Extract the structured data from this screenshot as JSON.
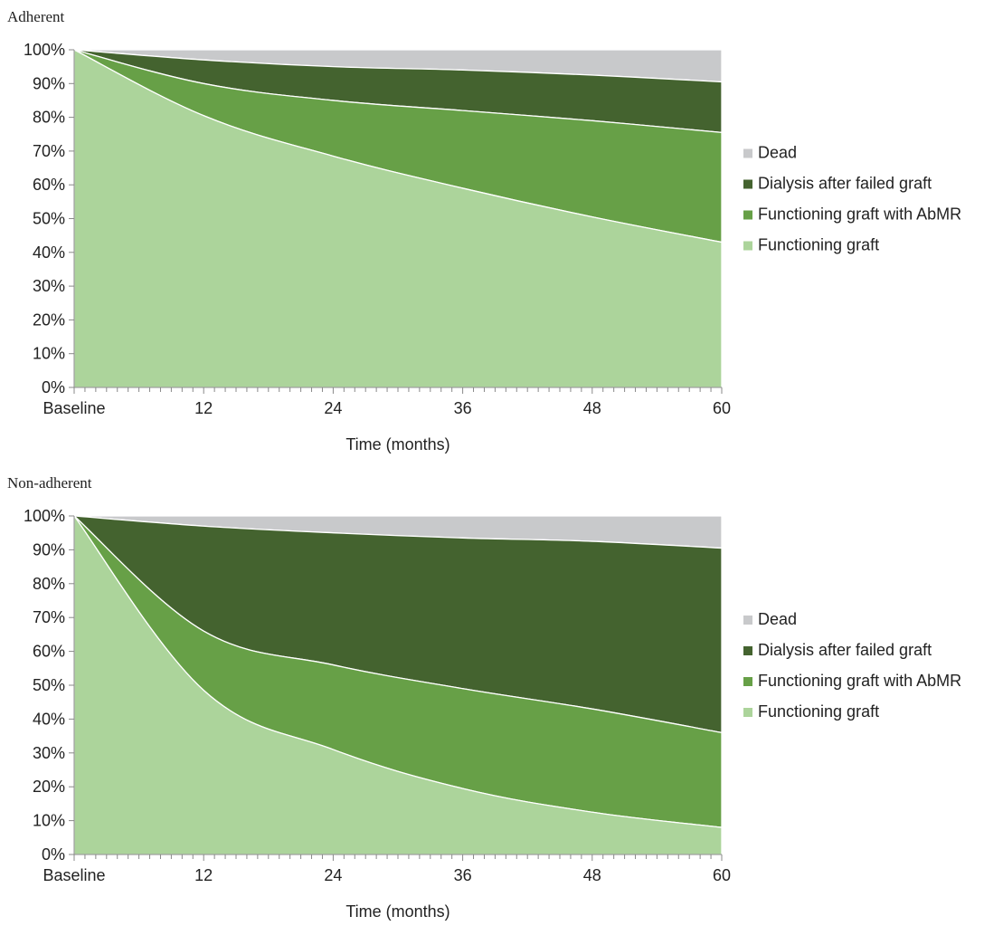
{
  "chart_data": [
    {
      "type": "area",
      "stacked": true,
      "title": "Adherent",
      "xlabel": "Time (months)",
      "ylabel": "",
      "x": [
        0,
        12,
        24,
        36,
        48,
        60
      ],
      "x_tick_labels": [
        "Baseline",
        "12",
        "24",
        "36",
        "48",
        "60"
      ],
      "y_tick_labels": [
        "0%",
        "10%",
        "20%",
        "30%",
        "40%",
        "50%",
        "60%",
        "70%",
        "80%",
        "90%",
        "100%"
      ],
      "ylim": [
        0,
        100
      ],
      "xlim": [
        0,
        60
      ],
      "legend_position": "right",
      "series": [
        {
          "name": "Functioning graft",
          "color": "#acd49b",
          "values": [
            100,
            80.5,
            68.5,
            59,
            50.5,
            43
          ]
        },
        {
          "name": "Functioning graft with AbMR",
          "color": "#67a047",
          "values": [
            0,
            9.5,
            16.5,
            23,
            28.5,
            32.5
          ]
        },
        {
          "name": "Dialysis after failed graft",
          "color": "#44632f",
          "values": [
            0,
            7,
            10,
            12,
            13.5,
            15
          ]
        },
        {
          "name": "Dead",
          "color": "#c8c9cb",
          "values": [
            0,
            3,
            5,
            6,
            7.5,
            9.5
          ]
        }
      ]
    },
    {
      "type": "area",
      "stacked": true,
      "title": "Non-adherent",
      "xlabel": "Time (months)",
      "ylabel": "",
      "x": [
        0,
        12,
        24,
        36,
        48,
        60
      ],
      "x_tick_labels": [
        "Baseline",
        "12",
        "24",
        "36",
        "48",
        "60"
      ],
      "y_tick_labels": [
        "0%",
        "10%",
        "20%",
        "30%",
        "40%",
        "50%",
        "60%",
        "70%",
        "80%",
        "90%",
        "100%"
      ],
      "ylim": [
        0,
        100
      ],
      "xlim": [
        0,
        60
      ],
      "legend_position": "right",
      "series": [
        {
          "name": "Functioning graft",
          "color": "#acd49b",
          "values": [
            100,
            48.5,
            31,
            19.5,
            12.5,
            8
          ]
        },
        {
          "name": "Functioning graft with AbMR",
          "color": "#67a047",
          "values": [
            0,
            17.5,
            25,
            29.5,
            30.5,
            28
          ]
        },
        {
          "name": "Dialysis after failed graft",
          "color": "#44632f",
          "values": [
            0,
            31,
            39,
            44.5,
            49.5,
            54.5
          ]
        },
        {
          "name": "Dead",
          "color": "#c8c9cb",
          "values": [
            0,
            3,
            5,
            6.5,
            7.5,
            9.5
          ]
        }
      ]
    }
  ],
  "legend_order": [
    "Dead",
    "Dialysis after failed graft",
    "Functioning graft with AbMR",
    "Functioning graft"
  ]
}
